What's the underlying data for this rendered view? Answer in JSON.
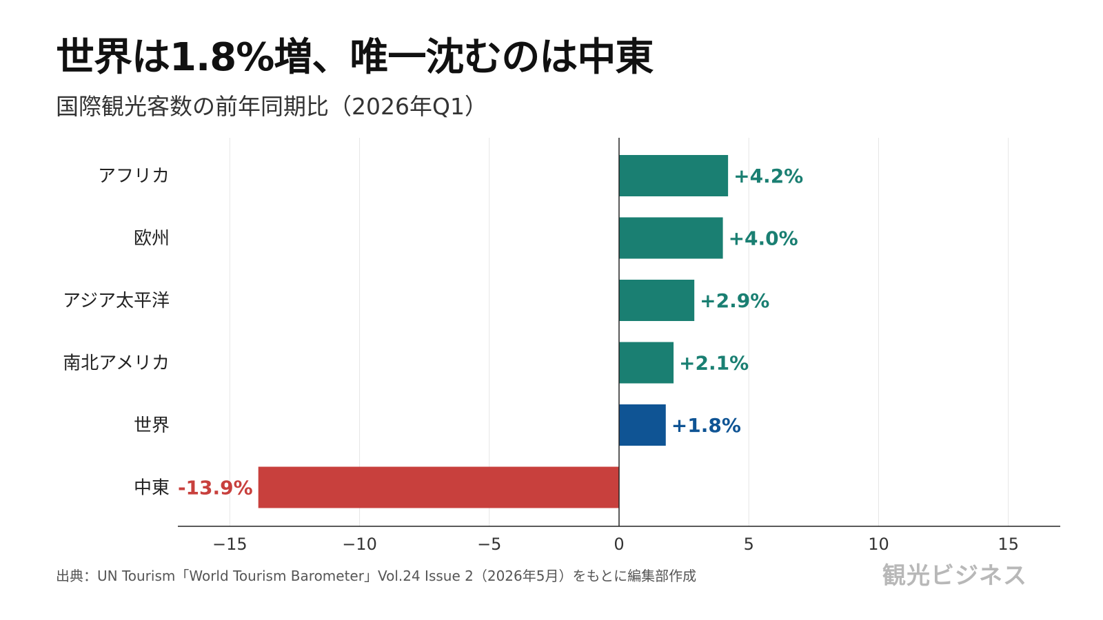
{
  "title": "世界は1.8%増、唯一沈むのは中東",
  "subtitle": "国際観光客数の前年同期比（2026年Q1）",
  "source": "出典：UN Tourism「World Tourism Barometer」Vol.24 Issue 2（2026年5月）をもとに編集部作成",
  "brand": "観光ビジネス",
  "colors": {
    "positive": "#1a7f72",
    "world": "#0f5494",
    "negative": "#c8403d"
  },
  "chart_data": {
    "type": "bar",
    "orientation": "horizontal",
    "categories": [
      "アフリカ",
      "欧州",
      "アジア太平洋",
      "南北アメリカ",
      "世界",
      "中東"
    ],
    "values": [
      4.2,
      4.0,
      2.9,
      2.1,
      1.8,
      -13.9
    ],
    "data_labels": [
      "+4.2%",
      "+4.0%",
      "+2.9%",
      "+2.1%",
      "+1.8%",
      "-13.9%"
    ],
    "bar_color_keys": [
      "positive",
      "positive",
      "positive",
      "positive",
      "world",
      "negative"
    ],
    "xlim": [
      -17,
      17
    ],
    "xticks": [
      -15,
      -10,
      -5,
      0,
      5,
      10,
      15
    ],
    "xtick_labels": [
      "−15",
      "−10",
      "−5",
      "0",
      "5",
      "10",
      "15"
    ],
    "grid": true,
    "legend": false
  }
}
